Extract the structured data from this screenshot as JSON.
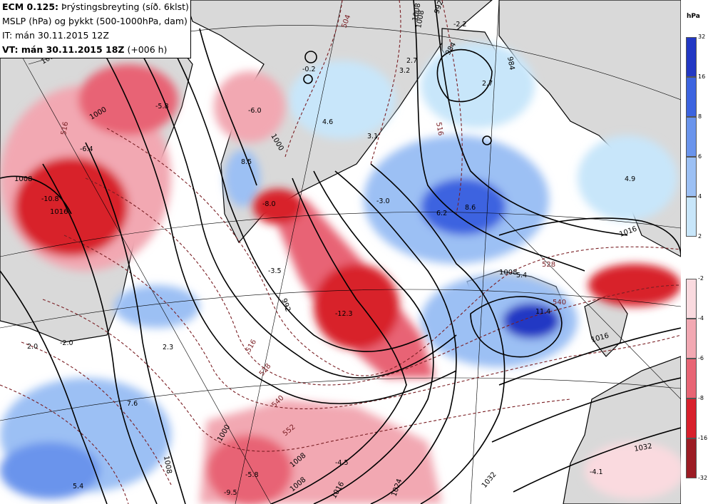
{
  "title": {
    "line1_bold": "ECM 0.125:",
    "line1_rest": " Þrýstingsbreyting (síð. 6klst)",
    "line2": "MSLP (hPa) og þykkt (500-1000hPa, dam)",
    "line3": "IT: mán 30.11.2015 12Z",
    "line4_bold": "VT: mán 30.11.2015 18Z",
    "line4_rest": " (+006 h)"
  },
  "legend": {
    "unit": "hPa",
    "rise": {
      "labels": [
        "32",
        "16",
        "8",
        "6",
        "4",
        "2"
      ],
      "colors": [
        "#2238c4",
        "#3c64e0",
        "#6a94ec",
        "#9cc0f4",
        "#c8e6fa"
      ]
    },
    "fall": {
      "labels": [
        "-2",
        "-4",
        "-6",
        "-8",
        "-16",
        "-32"
      ],
      "colors": [
        "#fadadf",
        "#f2a8b2",
        "#e86474",
        "#d8202c",
        "#9c1c24"
      ]
    }
  },
  "map": {
    "colors": {
      "sea": "#ffffff",
      "land": "#d9d9d9",
      "isobar": "#000000",
      "thickness": "#7a1f24",
      "graticule": "#000000"
    },
    "isobar_labels": [
      "1008",
      "1016",
      "1000",
      "992",
      "984",
      "992",
      "1008",
      "1016",
      "1000",
      "1008",
      "1016",
      "1024",
      "1032",
      "1008",
      "1016",
      "1008",
      "1032",
      "1000",
      "1008",
      "1016",
      "984",
      "1000",
      "1008"
    ],
    "thickness_labels": [
      "504",
      "516",
      "528",
      "540",
      "552",
      "516",
      "528",
      "540",
      "516"
    ],
    "pressure_change_values": [
      "-5.8",
      "-6.4",
      "-10.8",
      "-6.0",
      "8.5",
      "-8.0",
      "4.6",
      "3.1",
      "3.2",
      "2.7",
      "-2.2",
      "2.7",
      "-0.2",
      "-3.5",
      "-12.3",
      "-3.0",
      "6.2",
      "8.6",
      "4.9",
      "5.4",
      "11.4",
      "2.0",
      "-2.0",
      "2.3",
      "7.6",
      "5.4",
      "-5.8",
      "-9.5",
      "-4.5",
      "-4.1"
    ]
  }
}
